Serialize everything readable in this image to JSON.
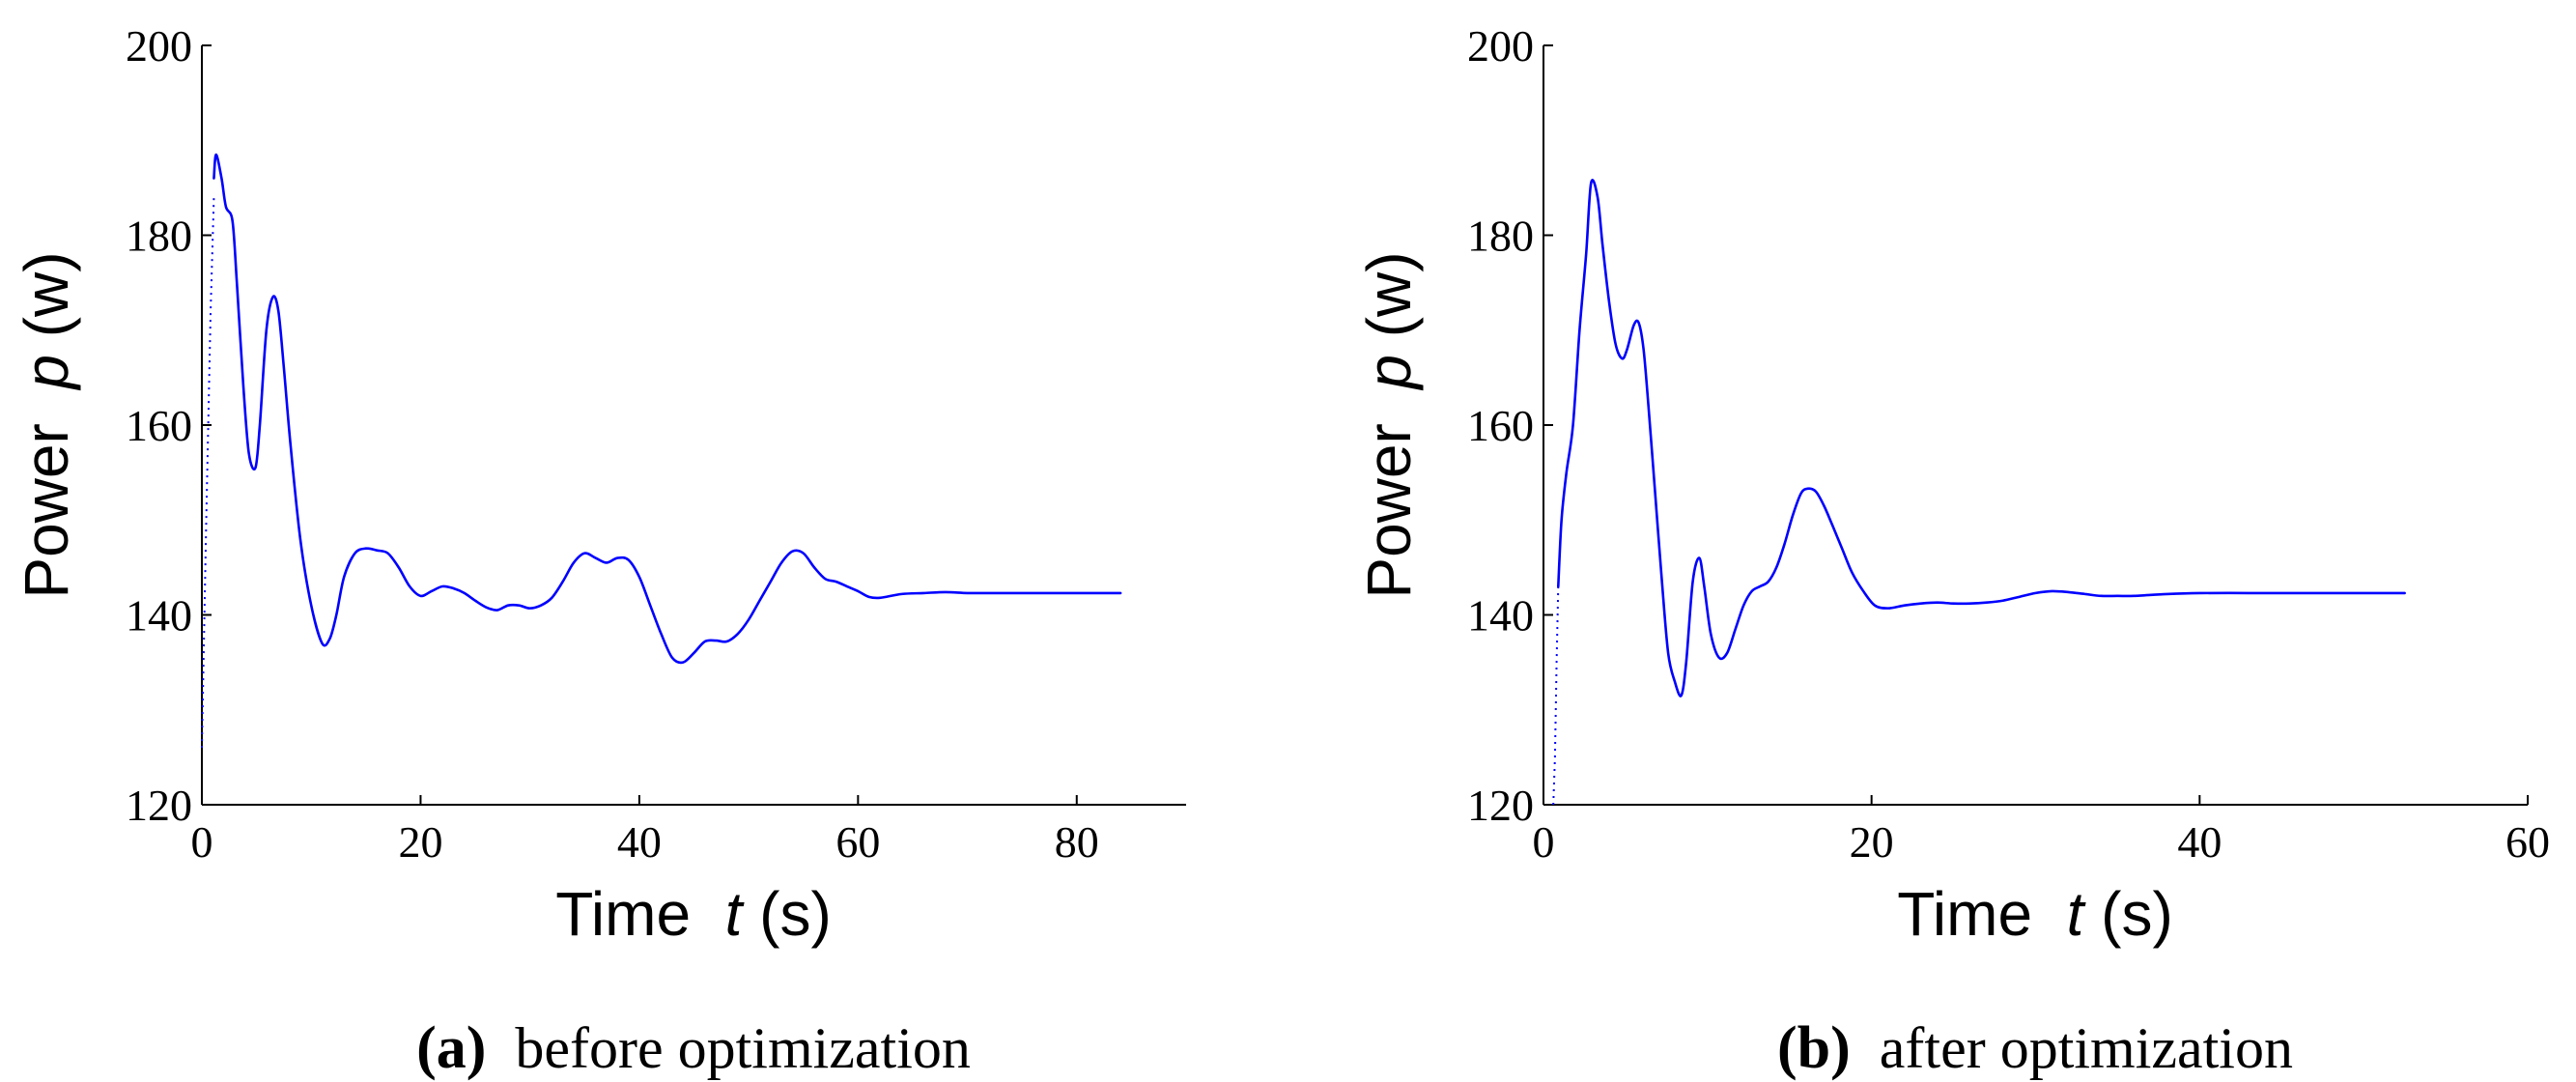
{
  "chart_data": [
    {
      "type": "line",
      "caption_letter": "(a)",
      "caption_text": "before optimization",
      "xlabel_prefix": "Time",
      "xlabel_var": "t",
      "xlabel_unit": "(s)",
      "ylabel_prefix": "Power",
      "ylabel_var": "p",
      "ylabel_unit": "(w)",
      "xlim": [
        0,
        90
      ],
      "ylim": [
        120,
        200
      ],
      "xticks": [
        0,
        20,
        40,
        60,
        80
      ],
      "yticks": [
        120,
        140,
        160,
        180,
        200
      ],
      "grid": false,
      "line_color": "#0000ff",
      "series": [
        {
          "name": "power",
          "dotted_lead": [
            [
              0,
              126
            ],
            [
              0.4,
              150
            ],
            [
              0.8,
              172
            ],
            [
              1.1,
              184
            ]
          ],
          "x": [
            1.1,
            1.3,
            1.8,
            2.2,
            2.8,
            3.2,
            3.8,
            4.3,
            4.9,
            5.3,
            5.9,
            6.5,
            7.0,
            7.5,
            8.1,
            9.0,
            10.0,
            11.0,
            11.7,
            12.3,
            13.0,
            14.0,
            15.0,
            16.0,
            17.0,
            18.0,
            19.0,
            20.0,
            21.0,
            22.0,
            23.0,
            24.0,
            25.0,
            26.0,
            27.0,
            28.0,
            29.0,
            30.0,
            31.0,
            32.0,
            33.0,
            34.0,
            35.0,
            36.0,
            37.0,
            38.0,
            39.0,
            40.0,
            41.0,
            42.0,
            43.0,
            44.0,
            45.0,
            46.0,
            47.0,
            48.0,
            49.0,
            50.0,
            51.0,
            52.0,
            53.0,
            54.0,
            55.0,
            56.0,
            57.0,
            58.0,
            59.0,
            60.0,
            61.0,
            62.0,
            64.0,
            66.0,
            68.0,
            70.0,
            72.0,
            75.0,
            78.0,
            81.0,
            84.0
          ],
          "y": [
            186.0,
            188.5,
            186.0,
            183.0,
            181.5,
            175.0,
            164.0,
            157.0,
            155.5,
            160.0,
            170.0,
            173.5,
            172.0,
            166.0,
            158.0,
            148.0,
            141.0,
            137.0,
            137.5,
            140.0,
            144.0,
            146.5,
            147.0,
            146.8,
            146.5,
            145.0,
            143.0,
            142.0,
            142.5,
            143.0,
            142.8,
            142.3,
            141.5,
            140.8,
            140.5,
            141.0,
            141.0,
            140.7,
            141.0,
            141.8,
            143.5,
            145.5,
            146.5,
            146.0,
            145.5,
            146.0,
            145.8,
            144.0,
            141.0,
            138.0,
            135.5,
            135.0,
            136.0,
            137.2,
            137.3,
            137.2,
            138.0,
            139.5,
            141.5,
            143.5,
            145.5,
            146.7,
            146.5,
            145.0,
            143.8,
            143.5,
            143.0,
            142.5,
            141.9,
            141.8,
            142.2,
            142.3,
            142.4,
            142.3,
            142.3,
            142.3,
            142.3,
            142.3,
            142.3
          ]
        }
      ]
    },
    {
      "type": "line",
      "caption_letter": "(b)",
      "caption_text": "after optimization",
      "xlabel_prefix": "Time",
      "xlabel_var": "t",
      "xlabel_unit": "(s)",
      "ylabel_prefix": "Power",
      "ylabel_var": "p",
      "ylabel_unit": "(w)",
      "xlim": [
        0,
        60
      ],
      "ylim": [
        120,
        200
      ],
      "xticks": [
        0,
        20,
        40,
        60
      ],
      "yticks": [
        120,
        140,
        160,
        180,
        200
      ],
      "grid": false,
      "line_color": "#0000ff",
      "series": [
        {
          "name": "power",
          "dotted_lead": [
            [
              0.6,
              120
            ],
            [
              0.7,
              125
            ],
            [
              0.8,
              135
            ],
            [
              0.9,
              143
            ]
          ],
          "x": [
            0.9,
            1.1,
            1.4,
            1.8,
            2.2,
            2.6,
            2.9,
            3.3,
            3.6,
            4.0,
            4.4,
            4.8,
            5.1,
            5.5,
            5.8,
            6.1,
            6.4,
            6.8,
            7.2,
            7.6,
            8.0,
            8.4,
            8.7,
            9.1,
            9.5,
            9.8,
            10.2,
            10.7,
            11.2,
            11.7,
            12.2,
            12.7,
            13.2,
            13.7,
            14.2,
            14.7,
            15.2,
            15.7,
            16.1,
            16.6,
            17.1,
            17.6,
            18.2,
            18.8,
            19.5,
            20.2,
            21.0,
            22.0,
            23.0,
            24.0,
            25.0,
            26.0,
            27.0,
            28.0,
            29.0,
            30.0,
            31.0,
            32.0,
            33.0,
            34.0,
            35.0,
            36.0,
            38.0,
            40.0,
            43.0,
            46.0,
            49.0,
            52.5
          ],
          "y": [
            143.0,
            150.0,
            155.0,
            160.0,
            170.0,
            178.0,
            185.5,
            184.0,
            179.0,
            173.0,
            168.5,
            167.0,
            168.0,
            170.5,
            170.8,
            168.0,
            162.0,
            153.0,
            144.0,
            136.0,
            133.0,
            131.5,
            135.0,
            143.5,
            146.0,
            143.0,
            138.0,
            135.5,
            136.0,
            138.5,
            141.0,
            142.5,
            143.0,
            143.5,
            145.0,
            147.5,
            150.5,
            152.8,
            153.3,
            153.0,
            151.5,
            149.5,
            147.0,
            144.5,
            142.5,
            141.0,
            140.7,
            141.0,
            141.2,
            141.3,
            141.2,
            141.2,
            141.3,
            141.5,
            141.9,
            142.3,
            142.5,
            142.4,
            142.2,
            142.0,
            142.0,
            142.0,
            142.2,
            142.3,
            142.3,
            142.3,
            142.3,
            142.3
          ]
        }
      ]
    }
  ]
}
